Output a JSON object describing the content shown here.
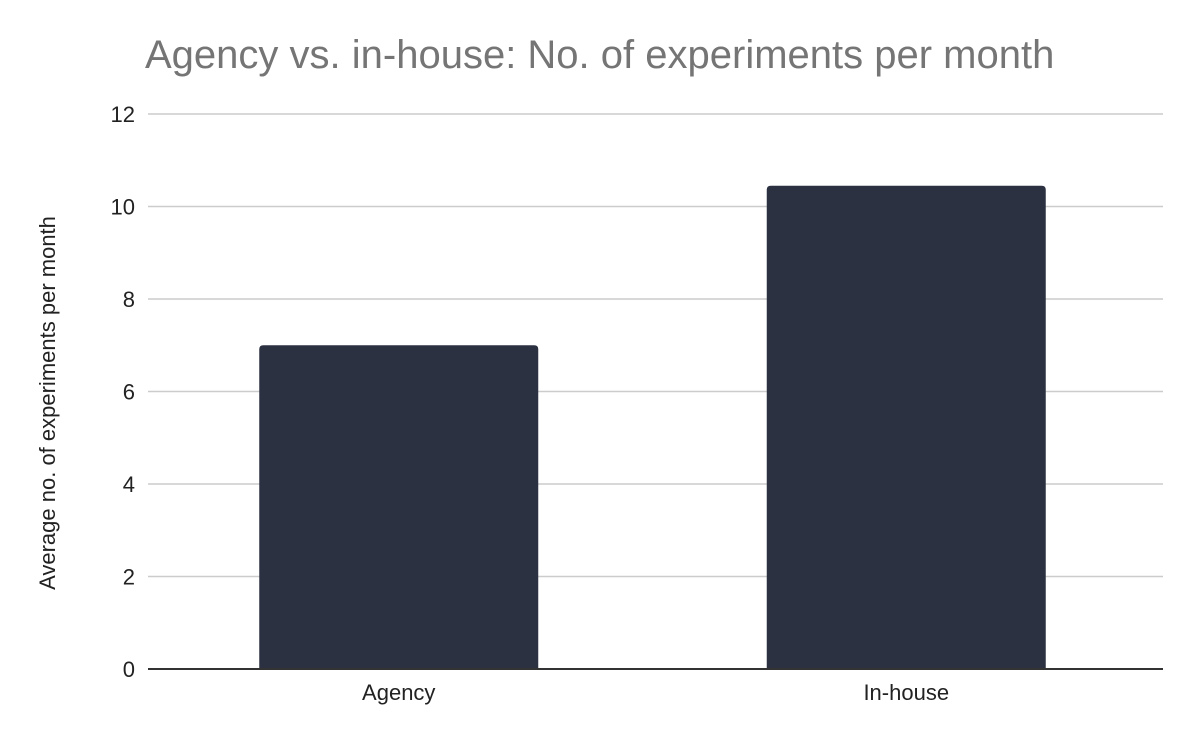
{
  "chart_data": {
    "type": "bar",
    "title": "Agency vs. in-house: No. of experiments per month",
    "xlabel": "",
    "ylabel": "Average no. of experiments per month",
    "categories": [
      "Agency",
      "In-house"
    ],
    "values": [
      7.0,
      10.45
    ],
    "ylim": [
      0,
      12
    ],
    "yticks": [
      0,
      2,
      4,
      6,
      8,
      10,
      12
    ],
    "grid": true,
    "legend": "none",
    "colors": {
      "bar": "#2b3140",
      "grid": "#cccccc",
      "axis": "#333333",
      "title": "#757575",
      "text": "#222222"
    }
  }
}
